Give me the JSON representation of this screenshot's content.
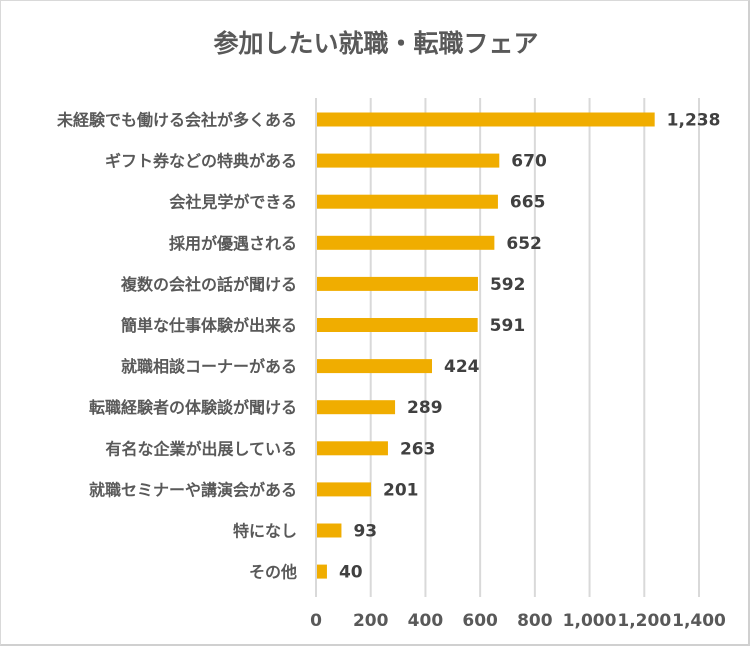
{
  "chart_data": {
    "type": "bar",
    "orientation": "horizontal",
    "title": "参加したい就職・転職フェア",
    "xlabel": "",
    "ylabel": "",
    "categories": [
      "未経験でも働ける会社が多くある",
      "ギフト券などの特典がある",
      "会社見学ができる",
      "採用が優遇される",
      "複数の会社の話が聞ける",
      "簡単な仕事体験が出来る",
      "就職相談コーナーがある",
      "転職経験者の体験談が聞ける",
      "有名な企業が出展している",
      "就職セミナーや講演会がある",
      "特になし",
      "その他"
    ],
    "values": [
      1238,
      670,
      665,
      652,
      592,
      591,
      424,
      289,
      263,
      201,
      93,
      40
    ],
    "value_labels": [
      "1,238",
      "670",
      "665",
      "652",
      "592",
      "591",
      "424",
      "289",
      "263",
      "201",
      "93",
      "40"
    ],
    "xlim": [
      0,
      1400
    ],
    "xticks": [
      0,
      200,
      400,
      600,
      800,
      1000,
      1200,
      1400
    ],
    "xtick_labels": [
      "0",
      "200",
      "400",
      "600",
      "800",
      "1,000",
      "1,200",
      "1,400"
    ],
    "grid": true,
    "legend": "none",
    "bar_color": "#F0AD00",
    "grid_color": "#D9D9D9"
  }
}
